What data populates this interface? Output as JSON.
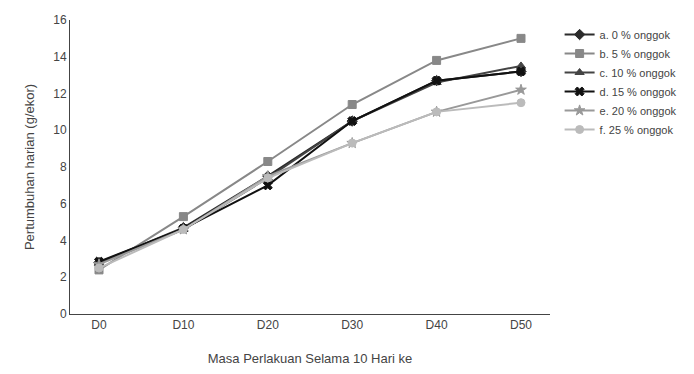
{
  "chart_data": {
    "type": "line",
    "xlabel": "Masa Perlakuan Selama 10 Hari ke",
    "ylabel": "Pertumbuhan harian (g/ekor)",
    "categories": [
      "D0",
      "D10",
      "D20",
      "D30",
      "D40",
      "D50"
    ],
    "series": [
      {
        "name": "a. 0 % onggok",
        "color": "#2b2b2b",
        "marker": "diamond",
        "values": [
          2.8,
          4.7,
          7.5,
          10.5,
          12.7,
          13.2
        ]
      },
      {
        "name": "b. 5 % onggok",
        "color": "#888888",
        "marker": "square",
        "values": [
          2.4,
          5.3,
          8.3,
          11.4,
          13.8,
          15.0
        ]
      },
      {
        "name": "c. 10 % onggok",
        "color": "#444444",
        "marker": "triangle-up",
        "values": [
          2.75,
          4.6,
          7.4,
          10.5,
          12.6,
          13.5
        ]
      },
      {
        "name": "d. 15 % onggok",
        "color": "#111111",
        "marker": "x",
        "values": [
          2.85,
          4.65,
          7.0,
          10.5,
          12.7,
          13.2
        ]
      },
      {
        "name": "e. 20 % onggok",
        "color": "#999999",
        "marker": "star",
        "values": [
          2.7,
          4.6,
          7.5,
          9.3,
          11.0,
          12.2
        ]
      },
      {
        "name": "f. 25 % onggok",
        "color": "#bbbbbb",
        "marker": "circle",
        "values": [
          2.5,
          4.6,
          7.4,
          9.3,
          11.0,
          11.5
        ]
      }
    ],
    "ylim": [
      0,
      16
    ],
    "yticks": [
      0,
      2,
      4,
      6,
      8,
      10,
      12,
      14,
      16
    ],
    "grid": false,
    "legend": "right"
  }
}
